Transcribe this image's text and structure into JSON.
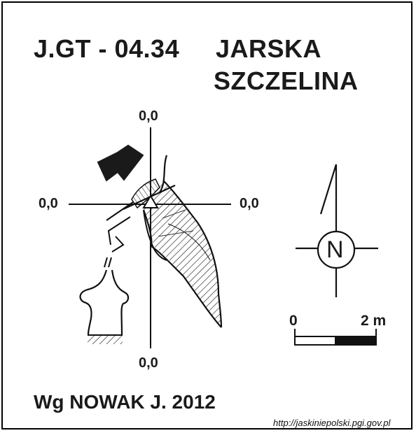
{
  "cave_code": "J.GT - 04.34",
  "cave_name_line1": "JARSKA",
  "cave_name_line2": "SZCZELINA",
  "coordinates": {
    "top": "0,0",
    "left": "0,0",
    "right": "0,0",
    "bottom": "0,0"
  },
  "compass": {
    "label": "N"
  },
  "scale": {
    "start_label": "0",
    "end_label": "2 m"
  },
  "author": "Wg NOWAK J. 2012",
  "source_url": "http://jaskiniepolski.pgi.gov.pl",
  "icons": [
    "entrance-arrow-icon",
    "survey-point-triangle-icon",
    "north-arrow-icon",
    "compass-icon"
  ]
}
